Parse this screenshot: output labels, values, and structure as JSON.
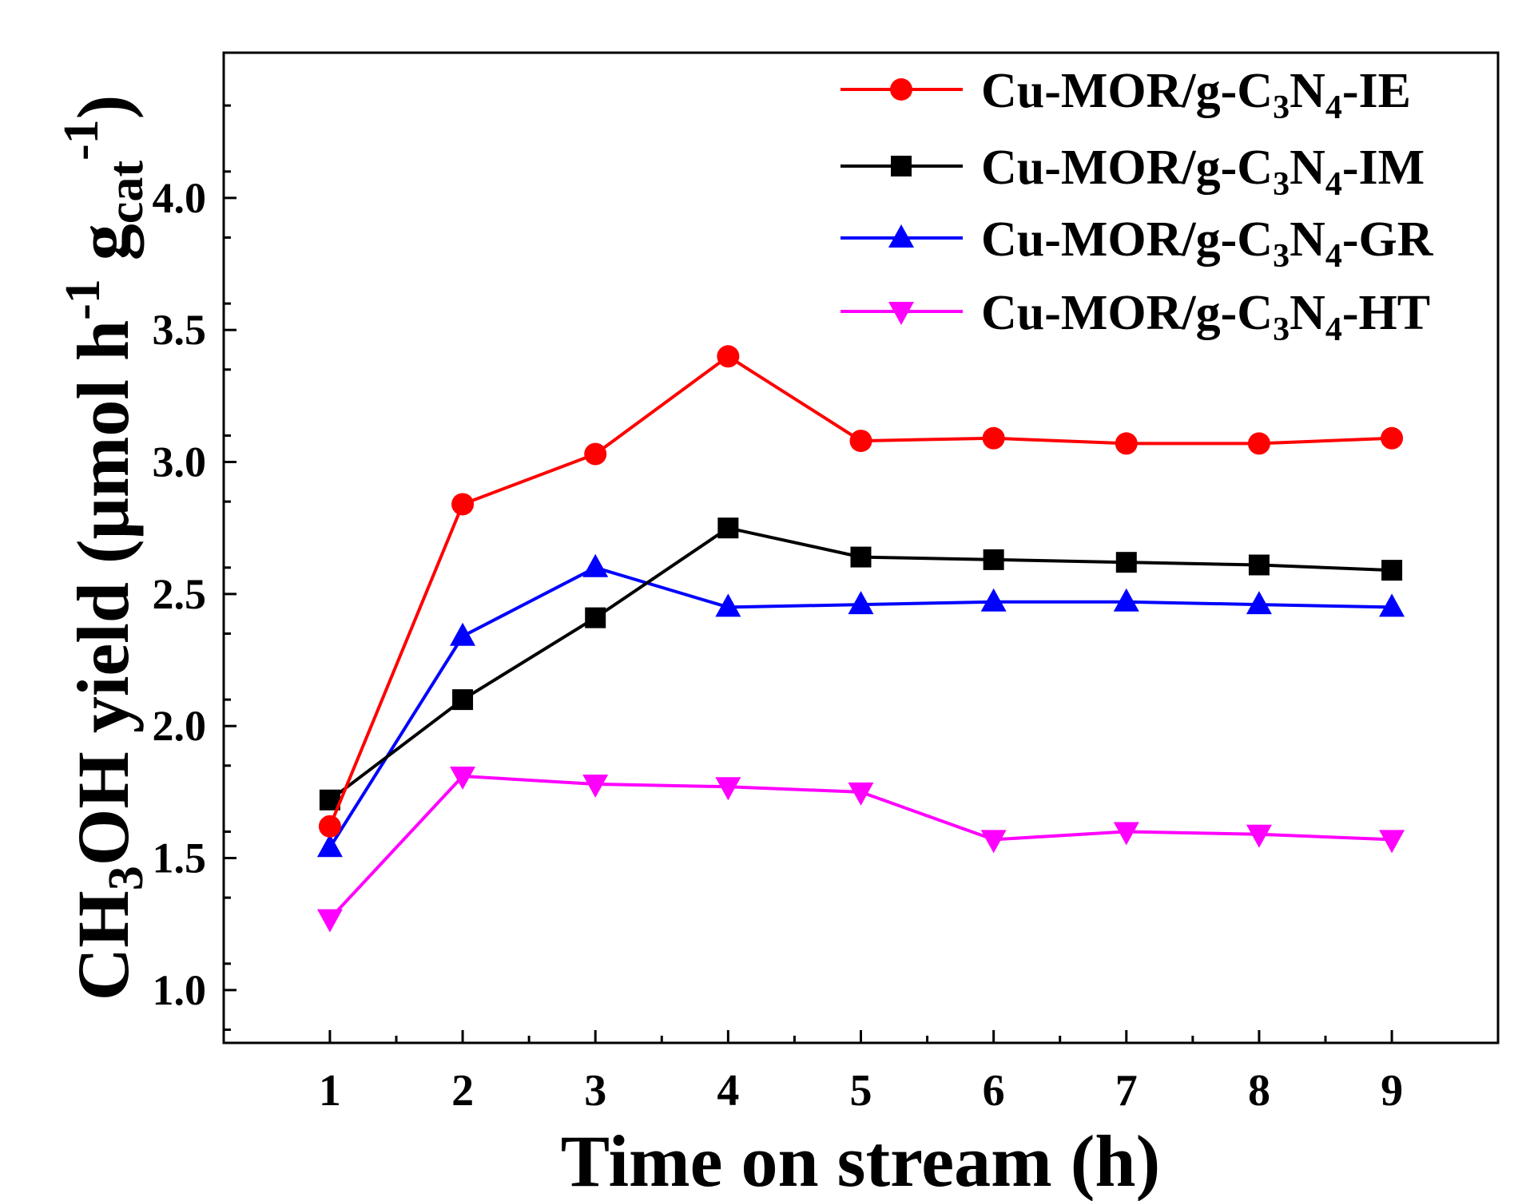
{
  "chart_data": {
    "type": "line",
    "title": "",
    "xlabel": "Time on stream (h)",
    "ylabel": {
      "prefix": "CH",
      "sub1": "3",
      "mid": "OH yield (μmol h",
      "sup1": "-1",
      "g": " g",
      "sub2": "cat",
      "sup2": "-1",
      "end": ")"
    },
    "xlim": [
      0.2,
      9.8
    ],
    "ylim": [
      0.8,
      4.55
    ],
    "x_ticks": [
      1,
      2,
      3,
      4,
      5,
      6,
      7,
      8,
      9
    ],
    "x_tick_labels": [
      "1",
      "2",
      "3",
      "4",
      "5",
      "6",
      "7",
      "8",
      "9"
    ],
    "y_ticks": [
      1.0,
      1.5,
      2.0,
      2.5,
      3.0,
      3.5,
      4.0
    ],
    "y_tick_labels": [
      "1.0",
      "1.5",
      "2.0",
      "2.5",
      "3.0",
      "3.5",
      "4.0"
    ],
    "grid": false,
    "legend_position": "top-right",
    "x": [
      1,
      2,
      3,
      4,
      5,
      6,
      7,
      8,
      9
    ],
    "series": [
      {
        "name": "Cu-MOR/g-C3N4-IE",
        "label": {
          "a": "Cu-MOR/g-C",
          "s1": "3",
          "b": "N",
          "s2": "4",
          "c": "-IE"
        },
        "color": "#ff0000",
        "marker": "circle",
        "values": [
          1.62,
          2.84,
          3.03,
          3.4,
          3.08,
          3.09,
          3.07,
          3.07,
          3.09
        ]
      },
      {
        "name": "Cu-MOR/g-C3N4-IM",
        "label": {
          "a": "Cu-MOR/g-C",
          "s1": "3",
          "b": "N",
          "s2": "4",
          "c": "-IM"
        },
        "color": "#000000",
        "marker": "square",
        "values": [
          1.72,
          2.1,
          2.41,
          2.75,
          2.64,
          2.63,
          2.62,
          2.61,
          2.59
        ]
      },
      {
        "name": "Cu-MOR/g-C3N4-GR",
        "label": {
          "a": "Cu-MOR/g-C",
          "s1": "3",
          "b": "N",
          "s2": "4",
          "c": "-GR"
        },
        "color": "#0000ff",
        "marker": "triangle-up",
        "values": [
          1.54,
          2.34,
          2.6,
          2.45,
          2.46,
          2.47,
          2.47,
          2.46,
          2.45
        ]
      },
      {
        "name": "Cu-MOR/g-C3N4-HT",
        "label": {
          "a": "Cu-MOR/g-C",
          "s1": "3",
          "b": "N",
          "s2": "4",
          "c": "-HT"
        },
        "color": "#ff00ff",
        "marker": "triangle-down",
        "values": [
          1.27,
          1.81,
          1.78,
          1.77,
          1.75,
          1.57,
          1.6,
          1.59,
          1.57
        ]
      }
    ]
  }
}
